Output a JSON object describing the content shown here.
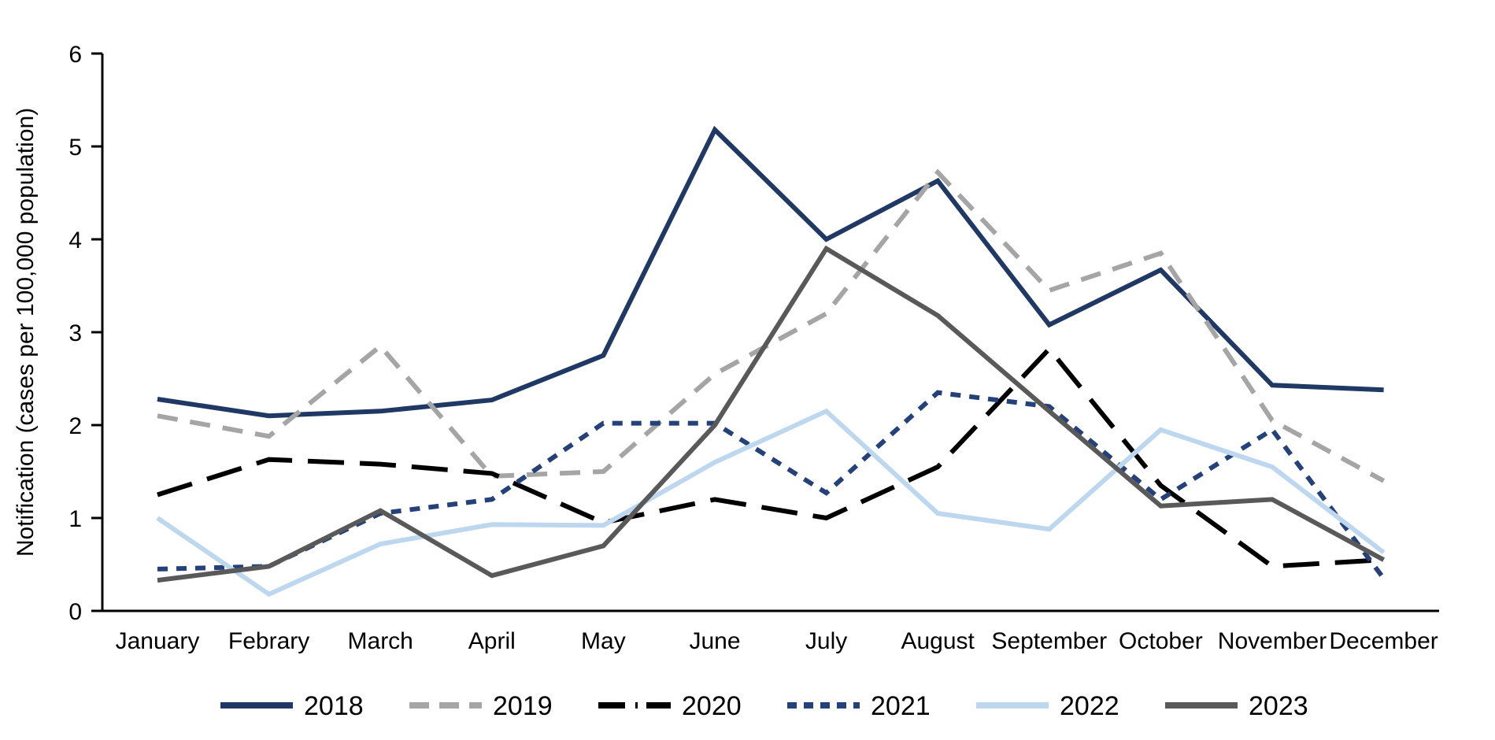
{
  "chart_data": {
    "type": "line",
    "title": "",
    "xlabel": "",
    "ylabel": "Notification (cases per 100,000 population)",
    "ylim": [
      0,
      6
    ],
    "yticks": [
      0,
      1,
      2,
      3,
      4,
      5,
      6
    ],
    "grid": false,
    "legend_position": "bottom",
    "categories": [
      "January",
      "Febrary",
      "March",
      "April",
      "May",
      "June",
      "July",
      "August",
      "September",
      "October",
      "November",
      "December"
    ],
    "series": [
      {
        "name": "2018",
        "color": "#1F3864",
        "dash": "solid",
        "values": [
          2.28,
          2.1,
          2.15,
          2.27,
          2.75,
          5.18,
          4.0,
          4.63,
          3.08,
          3.67,
          2.43,
          2.38
        ]
      },
      {
        "name": "2019",
        "color": "#A5A5A5",
        "dash": "dash",
        "values": [
          2.1,
          1.88,
          2.85,
          1.45,
          1.5,
          2.55,
          3.2,
          4.72,
          3.45,
          3.85,
          2.05,
          1.4
        ]
      },
      {
        "name": "2020",
        "color": "#000000",
        "dash": "longdash",
        "values": [
          1.25,
          1.63,
          1.58,
          1.48,
          0.95,
          1.2,
          1.0,
          1.55,
          2.82,
          1.35,
          0.48,
          0.55
        ]
      },
      {
        "name": "2021",
        "color": "#24417A",
        "dash": "shortdash",
        "values": [
          0.45,
          0.48,
          1.05,
          1.2,
          2.02,
          2.02,
          1.27,
          2.35,
          2.2,
          1.2,
          1.95,
          0.35
        ]
      },
      {
        "name": "2022",
        "color": "#BDD7EE",
        "dash": "solid",
        "values": [
          1.0,
          0.18,
          0.72,
          0.93,
          0.92,
          1.6,
          2.15,
          1.05,
          0.88,
          1.95,
          1.55,
          0.63
        ]
      },
      {
        "name": "2023",
        "color": "#595959",
        "dash": "solid",
        "values": [
          0.33,
          0.48,
          1.08,
          0.38,
          0.7,
          2.0,
          3.9,
          3.18,
          2.15,
          1.13,
          1.2,
          0.55
        ]
      }
    ]
  }
}
